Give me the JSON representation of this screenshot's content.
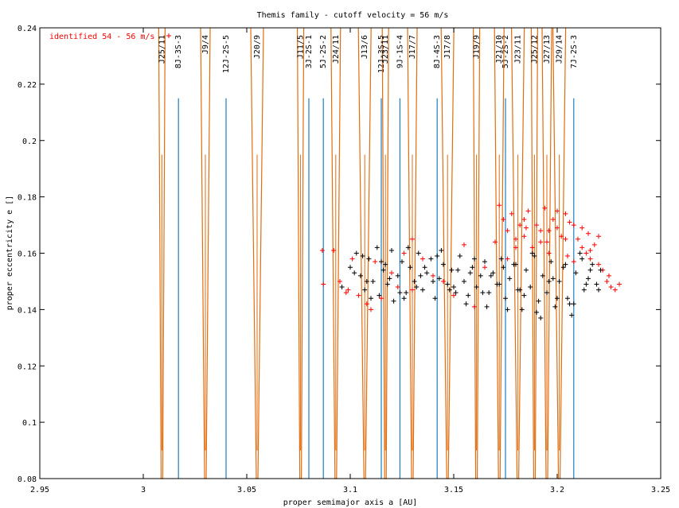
{
  "chart_data": {
    "type": "scatter",
    "title": "Themis family - cutoff velocity = 56 m/s",
    "xlabel": "proper semimajor axis a [AU]",
    "ylabel": "proper eccentricity e []",
    "xlim": [
      2.95,
      3.25
    ],
    "ylim": [
      0.08,
      0.24
    ],
    "x_ticks": [
      "2.95",
      "3",
      "3.05",
      "3.1",
      "3.15",
      "3.2",
      "3.25"
    ],
    "y_ticks": [
      "0.08",
      "0.1",
      "0.12",
      "0.14",
      "0.16",
      "0.18",
      "0.2",
      "0.22",
      "0.24"
    ],
    "grid": false,
    "legend_position": "top-left",
    "legend": [
      {
        "label": "identified 54 - 56 m/s",
        "color": "#ff0000",
        "marker": "+"
      }
    ],
    "three_body_resonances": [
      {
        "label": "8J-3S-3",
        "a": 3.017
      },
      {
        "label": "12J-2S-5",
        "a": 3.04
      },
      {
        "label": "3J-2S-1",
        "a": 3.08
      },
      {
        "label": "5J-2S-2",
        "a": 3.087
      },
      {
        "label": "12J-3S-5",
        "a": 3.115
      },
      {
        "label": "9J-1S-4",
        "a": 3.124
      },
      {
        "label": "8J-4S-3",
        "a": 3.142
      },
      {
        "label": "5J-2S-2",
        "a": 3.175
      },
      {
        "label": "7J-2S-3",
        "a": 3.208
      }
    ],
    "mean_motion_resonances": [
      {
        "label": "J25/11",
        "a": 3.009
      },
      {
        "label": "J9/4",
        "a": 3.03
      },
      {
        "label": "J20/9",
        "a": 3.055
      },
      {
        "label": "J11/5",
        "a": 3.076
      },
      {
        "label": "J24/11",
        "a": 3.093
      },
      {
        "label": "J13/6",
        "a": 3.107
      },
      {
        "label": "J23/11",
        "a": 3.117
      },
      {
        "label": "J17/7",
        "a": 3.13
      },
      {
        "label": "J17/8",
        "a": 3.147
      },
      {
        "label": "J19/9",
        "a": 3.161
      },
      {
        "label": "J21/10",
        "a": 3.172
      },
      {
        "label": "J23/11",
        "a": 3.181
      },
      {
        "label": "J25/12",
        "a": 3.189
      },
      {
        "label": "J27/13",
        "a": 3.195
      },
      {
        "label": "J29/14",
        "a": 3.201
      }
    ],
    "series": [
      {
        "name": "identified 54 - 56 m/s",
        "color": "#ff0000",
        "x": [
          3.0865,
          3.087,
          3.092,
          3.095,
          3.099,
          3.101,
          3.104,
          3.108,
          3.11,
          3.115,
          3.12,
          3.123,
          3.126,
          3.13,
          3.135,
          3.14,
          3.145,
          3.15,
          3.155,
          3.16,
          3.165,
          3.17,
          3.172,
          3.174,
          3.176,
          3.178,
          3.18,
          3.182,
          3.184,
          3.186,
          3.188,
          3.19,
          3.192,
          3.194,
          3.196,
          3.198,
          3.2,
          3.202,
          3.204,
          3.206,
          3.208,
          3.21,
          3.212,
          3.214,
          3.216,
          3.218,
          3.22,
          3.222,
          3.224,
          3.226,
          3.228,
          3.23,
          3.176,
          3.18,
          3.184,
          3.188,
          3.192,
          3.196,
          3.2,
          3.204,
          3.208,
          3.212,
          3.216,
          3.22,
          3.185,
          3.195,
          3.205,
          3.215,
          3.225,
          3.098,
          3.112,
          3.13
        ],
        "y": [
          0.161,
          0.149,
          0.161,
          0.15,
          0.147,
          0.158,
          0.145,
          0.142,
          0.14,
          0.144,
          0.153,
          0.148,
          0.16,
          0.147,
          0.158,
          0.152,
          0.15,
          0.145,
          0.163,
          0.141,
          0.155,
          0.164,
          0.177,
          0.172,
          0.168,
          0.174,
          0.162,
          0.17,
          0.166,
          0.175,
          0.16,
          0.17,
          0.164,
          0.176,
          0.168,
          0.172,
          0.169,
          0.166,
          0.174,
          0.171,
          0.17,
          0.165,
          0.162,
          0.16,
          0.158,
          0.163,
          0.156,
          0.154,
          0.15,
          0.148,
          0.147,
          0.149,
          0.158,
          0.165,
          0.172,
          0.162,
          0.168,
          0.16,
          0.175,
          0.165,
          0.157,
          0.169,
          0.161,
          0.166,
          0.169,
          0.164,
          0.159,
          0.167,
          0.152,
          0.146,
          0.157,
          0.165
        ]
      },
      {
        "name": "",
        "color": "#000000",
        "x": [
          3.096,
          3.1,
          3.103,
          3.105,
          3.107,
          3.109,
          3.111,
          3.113,
          3.114,
          3.116,
          3.118,
          3.12,
          3.121,
          3.123,
          3.125,
          3.127,
          3.129,
          3.131,
          3.133,
          3.135,
          3.137,
          3.139,
          3.141,
          3.143,
          3.145,
          3.147,
          3.149,
          3.151,
          3.153,
          3.155,
          3.157,
          3.159,
          3.161,
          3.163,
          3.165,
          3.167,
          3.169,
          3.171,
          3.173,
          3.175,
          3.177,
          3.179,
          3.181,
          3.183,
          3.185,
          3.187,
          3.189,
          3.191,
          3.193,
          3.195,
          3.197,
          3.199,
          3.201,
          3.203,
          3.205,
          3.207,
          3.209,
          3.211,
          3.213,
          3.215,
          3.217,
          3.219,
          3.221,
          3.102,
          3.106,
          3.11,
          3.115,
          3.119,
          3.124,
          3.128,
          3.132,
          3.136,
          3.14,
          3.144,
          3.148,
          3.152,
          3.156,
          3.16,
          3.164,
          3.168,
          3.172,
          3.176,
          3.18,
          3.184,
          3.188,
          3.192,
          3.196,
          3.2,
          3.204,
          3.208,
          3.212,
          3.216,
          3.22,
          3.108,
          3.117,
          3.126,
          3.134,
          3.142,
          3.15,
          3.158,
          3.166,
          3.174,
          3.182,
          3.19,
          3.198,
          3.206,
          3.214
        ],
        "y": [
          0.148,
          0.155,
          0.16,
          0.152,
          0.147,
          0.158,
          0.15,
          0.162,
          0.145,
          0.154,
          0.149,
          0.161,
          0.143,
          0.152,
          0.157,
          0.146,
          0.155,
          0.15,
          0.16,
          0.147,
          0.153,
          0.158,
          0.144,
          0.151,
          0.156,
          0.149,
          0.154,
          0.146,
          0.159,
          0.15,
          0.145,
          0.155,
          0.148,
          0.152,
          0.157,
          0.146,
          0.153,
          0.149,
          0.158,
          0.144,
          0.151,
          0.156,
          0.147,
          0.14,
          0.154,
          0.148,
          0.159,
          0.143,
          0.152,
          0.146,
          0.157,
          0.141,
          0.15,
          0.155,
          0.144,
          0.138,
          0.153,
          0.16,
          0.147,
          0.151,
          0.156,
          0.149,
          0.154,
          0.153,
          0.159,
          0.144,
          0.157,
          0.151,
          0.146,
          0.162,
          0.148,
          0.155,
          0.15,
          0.161,
          0.147,
          0.154,
          0.142,
          0.158,
          0.146,
          0.152,
          0.149,
          0.14,
          0.156,
          0.145,
          0.16,
          0.137,
          0.15,
          0.144,
          0.156,
          0.142,
          0.158,
          0.154,
          0.147,
          0.15,
          0.156,
          0.144,
          0.152,
          0.159,
          0.148,
          0.153,
          0.141,
          0.155,
          0.147,
          0.139,
          0.151,
          0.142,
          0.149
        ]
      }
    ]
  }
}
